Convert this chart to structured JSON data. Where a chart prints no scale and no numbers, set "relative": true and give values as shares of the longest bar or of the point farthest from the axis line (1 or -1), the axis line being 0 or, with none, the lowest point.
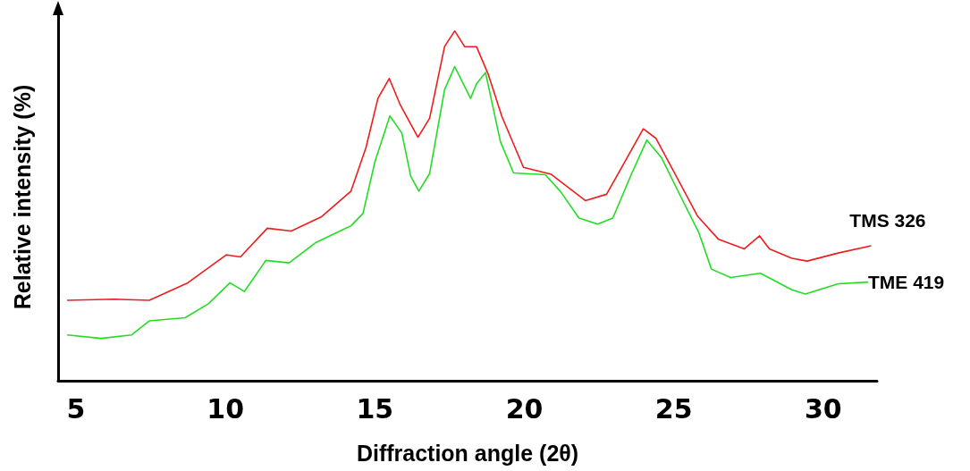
{
  "chart_data": {
    "type": "line",
    "xlabel": "Diffraction angle (2θ)",
    "ylabel": "Relative intensity (%)",
    "relative": true,
    "xlim": [
      4.4,
      31.8
    ],
    "xticks": [
      5,
      10,
      15,
      20,
      25,
      30
    ],
    "grid": false,
    "legend": false,
    "marker": "none",
    "line_style": "solid",
    "series": [
      {
        "name": "TMS 326",
        "color": "#ee1c1c",
        "x": [
          4.7,
          6.26,
          7.45,
          8.74,
          10.03,
          10.5,
          11.4,
          12.2,
          13.2,
          14.2,
          14.7,
          15.1,
          15.48,
          15.84,
          16.44,
          16.83,
          17.33,
          17.67,
          18.0,
          18.4,
          18.8,
          19.25,
          19.97,
          20.9,
          22.04,
          22.75,
          23.26,
          23.98,
          24.4,
          25.03,
          25.8,
          26.5,
          27.36,
          27.87,
          28.2,
          28.95,
          29.46,
          30.5,
          31.6
        ],
        "values": [
          0.23,
          0.233,
          0.23,
          0.28,
          0.36,
          0.354,
          0.436,
          0.428,
          0.468,
          0.542,
          0.666,
          0.807,
          0.864,
          0.79,
          0.696,
          0.75,
          0.955,
          1,
          0.955,
          0.955,
          0.874,
          0.755,
          0.61,
          0.59,
          0.515,
          0.533,
          0.61,
          0.72,
          0.693,
          0.593,
          0.47,
          0.404,
          0.377,
          0.414,
          0.377,
          0.35,
          0.342,
          0.365,
          0.386
        ]
      },
      {
        "name": "TME 419",
        "color": "#22dd22",
        "x": [
          4.7,
          5.84,
          6.86,
          7.45,
          8.65,
          9.43,
          10.15,
          10.63,
          11.35,
          12.13,
          13.0,
          14.2,
          14.6,
          15.0,
          15.5,
          15.9,
          16.2,
          16.47,
          16.83,
          17.33,
          17.67,
          18.2,
          18.4,
          18.7,
          19.2,
          19.64,
          20.7,
          21.2,
          21.83,
          22.45,
          22.96,
          23.6,
          24.1,
          24.6,
          25.24,
          25.84,
          26.26,
          26.9,
          27.9,
          28.95,
          29.4,
          30.5,
          31.5
        ],
        "values": [
          0.131,
          0.121,
          0.131,
          0.171,
          0.18,
          0.22,
          0.28,
          0.255,
          0.344,
          0.337,
          0.394,
          0.443,
          0.478,
          0.626,
          0.757,
          0.708,
          0.584,
          0.542,
          0.592,
          0.832,
          0.898,
          0.807,
          0.849,
          0.881,
          0.683,
          0.594,
          0.589,
          0.542,
          0.465,
          0.448,
          0.465,
          0.594,
          0.688,
          0.636,
          0.525,
          0.423,
          0.319,
          0.295,
          0.307,
          0.26,
          0.248,
          0.277,
          0.282
        ]
      }
    ]
  }
}
